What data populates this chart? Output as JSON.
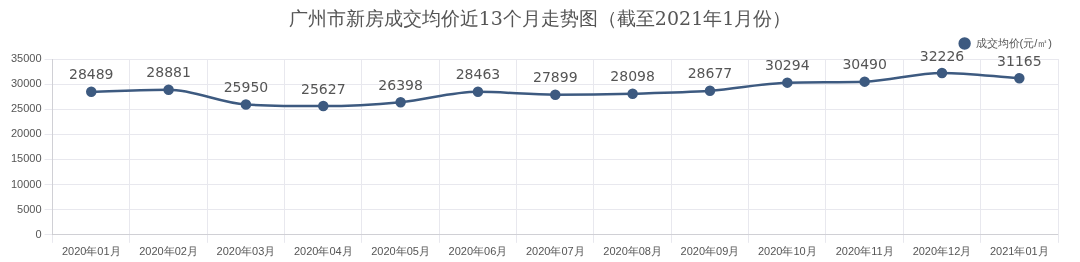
{
  "chart_data": {
    "type": "line",
    "title": "广州市新房成交均价近13个月走势图（截至2021年1月份）",
    "categories": [
      "2020年01月",
      "2020年02月",
      "2020年03月",
      "2020年04月",
      "2020年05月",
      "2020年06月",
      "2020年07月",
      "2020年08月",
      "2020年09月",
      "2020年10月",
      "2020年11月",
      "2020年12月",
      "2021年01月"
    ],
    "series": [
      {
        "name": "成交均价(元/㎡)",
        "color": "#3d5a80",
        "values": [
          28489,
          28881,
          25950,
          25627,
          26398,
          28463,
          27899,
          28098,
          28677,
          30294,
          30490,
          32226,
          31165
        ]
      }
    ],
    "ylim": [
      0,
      35000
    ],
    "yticks": [
      0,
      5000,
      10000,
      15000,
      20000,
      25000,
      30000,
      35000
    ],
    "grid": true,
    "legend": "top right",
    "marker": "circle",
    "line_style": "solid",
    "data_labels": true
  }
}
